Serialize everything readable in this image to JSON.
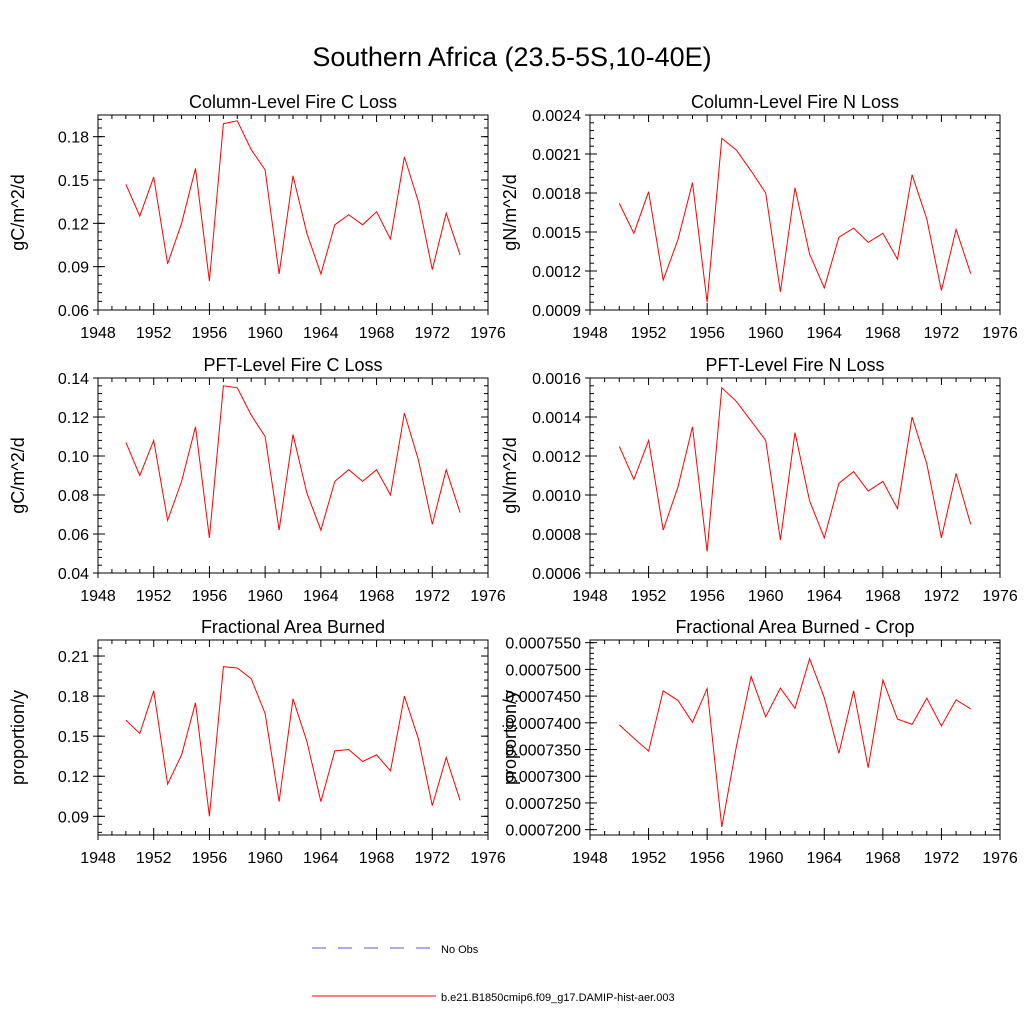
{
  "figure": {
    "title": "Southern Africa (23.5-5S,10-40E)"
  },
  "legend": {
    "items": [
      {
        "label": "No Obs",
        "color": "#5b5bd6",
        "style": "dashed"
      },
      {
        "label": "b.e21.B1850cmip6.f09_g17.DAMIP-hist-aer.003",
        "color": "#ff0000",
        "style": "solid"
      }
    ]
  },
  "chart_data": [
    {
      "type": "line",
      "title": "Column-Level Fire C Loss",
      "ylabel": "gC/m^2/d",
      "xlabel": "",
      "xlim": [
        1948,
        1976
      ],
      "ylim": [
        0.06,
        0.195
      ],
      "xticks": [
        "1948",
        "1952",
        "1956",
        "1960",
        "1964",
        "1968",
        "1972",
        "1976"
      ],
      "yticks": [
        "0.06",
        "0.09",
        "0.12",
        "0.15",
        "0.18"
      ],
      "grid": false,
      "series": [
        {
          "color": "#ff0000",
          "x": [
            1950,
            1951,
            1952,
            1953,
            1954,
            1955,
            1956,
            1957,
            1958,
            1959,
            1960,
            1961,
            1962,
            1963,
            1964,
            1965,
            1966,
            1967,
            1968,
            1969,
            1970,
            1971,
            1972,
            1973,
            1974
          ],
          "values": [
            0.147,
            0.125,
            0.152,
            0.092,
            0.12,
            0.158,
            0.08,
            0.189,
            0.191,
            0.171,
            0.157,
            0.085,
            0.153,
            0.113,
            0.085,
            0.119,
            0.126,
            0.119,
            0.128,
            0.109,
            0.166,
            0.135,
            0.088,
            0.127,
            0.098
          ]
        }
      ]
    },
    {
      "type": "line",
      "title": "Column-Level Fire N Loss",
      "ylabel": "gN/m^2/d",
      "xlabel": "",
      "xlim": [
        1948,
        1976
      ],
      "ylim": [
        0.0009,
        0.0024
      ],
      "xticks": [
        "1948",
        "1952",
        "1956",
        "1960",
        "1964",
        "1968",
        "1972",
        "1976"
      ],
      "yticks": [
        "0.0009",
        "0.0012",
        "0.0015",
        "0.0018",
        "0.0021",
        "0.0024"
      ],
      "grid": false,
      "series": [
        {
          "color": "#ff0000",
          "x": [
            1950,
            1951,
            1952,
            1953,
            1954,
            1955,
            1956,
            1957,
            1958,
            1959,
            1960,
            1961,
            1962,
            1963,
            1964,
            1965,
            1966,
            1967,
            1968,
            1969,
            1970,
            1971,
            1972,
            1973,
            1974
          ],
          "values": [
            0.00172,
            0.00149,
            0.00181,
            0.00113,
            0.00144,
            0.00188,
            0.00096,
            0.00222,
            0.00213,
            0.00197,
            0.0018,
            0.00104,
            0.00184,
            0.00133,
            0.00107,
            0.00146,
            0.00153,
            0.00142,
            0.00149,
            0.00129,
            0.00194,
            0.0016,
            0.00105,
            0.00152,
            0.00118
          ]
        }
      ]
    },
    {
      "type": "line",
      "title": "PFT-Level Fire C Loss",
      "ylabel": "gC/m^2/d",
      "xlabel": "",
      "xlim": [
        1948,
        1976
      ],
      "ylim": [
        0.04,
        0.14
      ],
      "xticks": [
        "1948",
        "1952",
        "1956",
        "1960",
        "1964",
        "1968",
        "1972",
        "1976"
      ],
      "yticks": [
        "0.04",
        "0.06",
        "0.08",
        "0.10",
        "0.12",
        "0.14"
      ],
      "grid": false,
      "series": [
        {
          "color": "#ff0000",
          "x": [
            1950,
            1951,
            1952,
            1953,
            1954,
            1955,
            1956,
            1957,
            1958,
            1959,
            1960,
            1961,
            1962,
            1963,
            1964,
            1965,
            1966,
            1967,
            1968,
            1969,
            1970,
            1971,
            1972,
            1973,
            1974
          ],
          "values": [
            0.107,
            0.09,
            0.108,
            0.067,
            0.087,
            0.115,
            0.058,
            0.136,
            0.135,
            0.121,
            0.11,
            0.062,
            0.111,
            0.081,
            0.062,
            0.087,
            0.093,
            0.087,
            0.093,
            0.08,
            0.122,
            0.098,
            0.065,
            0.093,
            0.071
          ]
        }
      ]
    },
    {
      "type": "line",
      "title": "PFT-Level Fire N Loss",
      "ylabel": "gN/m^2/d",
      "xlabel": "",
      "xlim": [
        1948,
        1976
      ],
      "ylim": [
        0.0006,
        0.0016
      ],
      "xticks": [
        "1948",
        "1952",
        "1956",
        "1960",
        "1964",
        "1968",
        "1972",
        "1976"
      ],
      "yticks": [
        "0.0006",
        "0.0008",
        "0.0010",
        "0.0012",
        "0.0014",
        "0.0016"
      ],
      "grid": false,
      "series": [
        {
          "color": "#ff0000",
          "x": [
            1950,
            1951,
            1952,
            1953,
            1954,
            1955,
            1956,
            1957,
            1958,
            1959,
            1960,
            1961,
            1962,
            1963,
            1964,
            1965,
            1966,
            1967,
            1968,
            1969,
            1970,
            1971,
            1972,
            1973,
            1974
          ],
          "values": [
            0.00125,
            0.00108,
            0.00128,
            0.00082,
            0.00104,
            0.00135,
            0.00071,
            0.00155,
            0.00148,
            0.00138,
            0.00128,
            0.00077,
            0.00132,
            0.00097,
            0.00078,
            0.00106,
            0.00112,
            0.00102,
            0.00107,
            0.00093,
            0.0014,
            0.00116,
            0.00078,
            0.00111,
            0.00085
          ]
        }
      ]
    },
    {
      "type": "line",
      "title": "Fractional Area Burned",
      "ylabel": "proportion/y",
      "xlabel": "",
      "xlim": [
        1948,
        1976
      ],
      "ylim": [
        0.076,
        0.222
      ],
      "xticks": [
        "1948",
        "1952",
        "1956",
        "1960",
        "1964",
        "1968",
        "1972",
        "1976"
      ],
      "yticks": [
        "0.09",
        "0.12",
        "0.15",
        "0.18",
        "0.21"
      ],
      "grid": false,
      "series": [
        {
          "color": "#ff0000",
          "x": [
            1950,
            1951,
            1952,
            1953,
            1954,
            1955,
            1956,
            1957,
            1958,
            1959,
            1960,
            1961,
            1962,
            1963,
            1964,
            1965,
            1966,
            1967,
            1968,
            1969,
            1970,
            1971,
            1972,
            1973,
            1974
          ],
          "values": [
            0.162,
            0.152,
            0.184,
            0.114,
            0.136,
            0.175,
            0.09,
            0.202,
            0.201,
            0.193,
            0.167,
            0.101,
            0.178,
            0.146,
            0.101,
            0.139,
            0.14,
            0.131,
            0.136,
            0.124,
            0.18,
            0.148,
            0.098,
            0.134,
            0.102
          ]
        }
      ]
    },
    {
      "type": "line",
      "title": "Fractional Area Burned - Crop",
      "ylabel": "proportion/y",
      "xlabel": "",
      "xlim": [
        1948,
        1976
      ],
      "ylim": [
        0.000719,
        0.0007555
      ],
      "xticks": [
        "1948",
        "1952",
        "1956",
        "1960",
        "1964",
        "1968",
        "1972",
        "1976"
      ],
      "yticks": [
        "0.0007200",
        "0.0007250",
        "0.0007300",
        "0.0007350",
        "0.0007400",
        "0.0007450",
        "0.0007500",
        "0.0007550"
      ],
      "grid": false,
      "series": [
        {
          "color": "#ff0000",
          "x": [
            1950,
            1951,
            1952,
            1953,
            1954,
            1955,
            1956,
            1957,
            1958,
            1959,
            1960,
            1961,
            1962,
            1963,
            1964,
            1965,
            1966,
            1967,
            1968,
            1969,
            1970,
            1971,
            1972,
            1973,
            1974
          ],
          "values": [
            0.0007396,
            0.0007371,
            0.0007347,
            0.000746,
            0.0007442,
            0.0007401,
            0.0007464,
            0.0007205,
            0.0007356,
            0.0007487,
            0.0007411,
            0.0007465,
            0.0007427,
            0.000752,
            0.0007447,
            0.0007343,
            0.000746,
            0.0007316,
            0.000748,
            0.0007407,
            0.0007397,
            0.0007446,
            0.0007394,
            0.0007443,
            0.0007426
          ]
        }
      ]
    }
  ]
}
